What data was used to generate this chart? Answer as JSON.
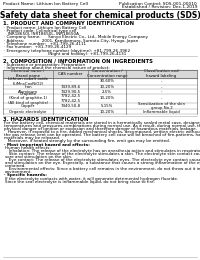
{
  "title": "Safety data sheet for chemical products (SDS)",
  "header_left": "Product Name: Lithium Ion Battery Cell",
  "header_right_line1": "Publication Control: SDS-001-00010",
  "header_right_line2": "Established / Revision: Dec.1.2019",
  "section1_title": "1. PRODUCT AND COMPANY IDENTIFICATION",
  "section1_lines": [
    "· Product name: Lithium Ion Battery Cell",
    "· Product code: Cylindrical type cell",
    "   INR18650J, INR18650L, INR18650A",
    "· Company name:      Sanyo Electric Co., Ltd., Mobile Energy Company",
    "· Address:              2001, Kamikomuro, Sumoto-City, Hyogo, Japan",
    "· Telephone number:   +81-799-26-4111",
    "· Fax number:  +81-799-26-4129",
    "· Emergency telephone number (daytime): +81-799-26-3962",
    "                                   (Night and holiday): +81-799-26-4131"
  ],
  "section2_title": "2. COMPOSITION / INFORMATION ON INGREDIENTS",
  "section2_intro": "· Substance or preparation: Preparation",
  "section2_sub": "· Information about the chemical nature of product:",
  "table_headers": [
    "Chemical name /\nBrand name",
    "CAS number",
    "Concentration /\nConcentration range",
    "Classification and\nhazard labeling"
  ],
  "table_rows": [
    [
      "Lithium cobalt oxide\n(LiMnxCoxNiO2)",
      "-",
      "30-60%",
      "-"
    ],
    [
      "Iron",
      "7439-89-6",
      "10-20%",
      "-"
    ],
    [
      "Aluminum",
      "7429-90-5",
      "2-5%",
      "-"
    ],
    [
      "Graphite\n(Kind of graphite-1)\n(All kind of graphite)",
      "7782-42-5\n7782-42-5",
      "10-20%",
      "-"
    ],
    [
      "Copper",
      "7440-50-8",
      "5-15%",
      "Sensitization of the skin\ngroup No.2"
    ],
    [
      "Organic electrolyte",
      "-",
      "10-20%",
      "Inflammable liquid"
    ]
  ],
  "section3_title": "3. HAZARDS IDENTIFICATION",
  "section3_lines": [
    "For the battery cell, chemical materials are stored in a hermetically sealed metal case, designed to withstand",
    "temperatures and pressures-combinations during normal use. As a result, during normal use, there is no",
    "physical danger of ignition or explosion and therefore danger of hazardous materials leakage.",
    "   However, if exposed to a fire, added mechanical shocks, decomposed, written electric without any measures,",
    "the gas release vent can be operated. The battery cell case will be breached of fire-patterns, hazardous",
    "materials may be released.",
    "   Moreover, if heated strongly by the surrounding fire, emit gas may be emitted."
  ],
  "section3_hazard_title": "· Most important hazard and effects:",
  "section3_hazard_lines": [
    "Human health effects:",
    "   Inhalation: The release of the electrolyte has an anesthesia action and stimulates in respiratory tract.",
    "   Skin contact: The release of the electrolyte stimulates a skin. The electrolyte skin contact causes a",
    "sore and stimulation on the skin.",
    "   Eye contact: The release of the electrolyte stimulates eyes. The electrolyte eye contact causes a sore",
    "and stimulation on the eye. Especially, a substance that causes a strong inflammation of the eye is",
    "contained.",
    "   Environmental effects: Since a battery cell remains in the environment, do not throw out it into the",
    "environment."
  ],
  "section3_specific_title": "· Specific hazards:",
  "section3_specific_lines": [
    "If the electrolyte contacts with water, it will generate detrimental hydrogen fluoride.",
    "Since the seal electrolyte is inflammable liquid, do not bring close to fire."
  ],
  "bg_color": "#ffffff",
  "text_color": "#000000",
  "line_color": "#888888",
  "header_fontsize": 3.2,
  "title_fontsize": 5.5,
  "section_fontsize": 3.8,
  "body_fontsize": 3.0,
  "table_fontsize": 2.8
}
